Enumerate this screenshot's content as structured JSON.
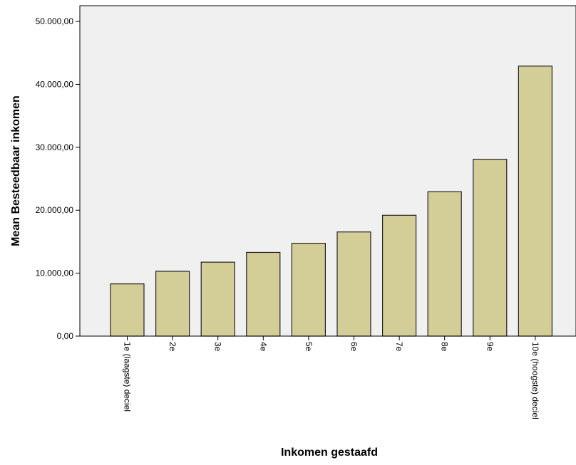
{
  "chart_data": {
    "type": "bar",
    "title": "",
    "xlabel": "Inkomen gestaafd",
    "ylabel": "Mean Besteedbaar inkomen",
    "categories": [
      "1e (laagste) deciel",
      "2e",
      "3e",
      "4e",
      "5e",
      "6e",
      "7e",
      "8e",
      "9e",
      "10e (hoogste) deciel"
    ],
    "values": [
      8300,
      10300,
      11750,
      13300,
      14750,
      16550,
      19200,
      22950,
      28100,
      42900
    ],
    "ylim": [
      0,
      52500
    ],
    "yticks": [
      0,
      10000,
      20000,
      30000,
      40000,
      50000
    ],
    "ytick_labels": [
      "0,00",
      "10.000,00",
      "20.000,00",
      "30.000,00",
      "40.000,00",
      "50.000,00"
    ],
    "grid": false,
    "legend": "none",
    "colors": {
      "plot_background": "#f0f0f0",
      "bar_fill": "#d3ce97",
      "bar_stroke": "#222222",
      "axis": "#000000"
    }
  }
}
